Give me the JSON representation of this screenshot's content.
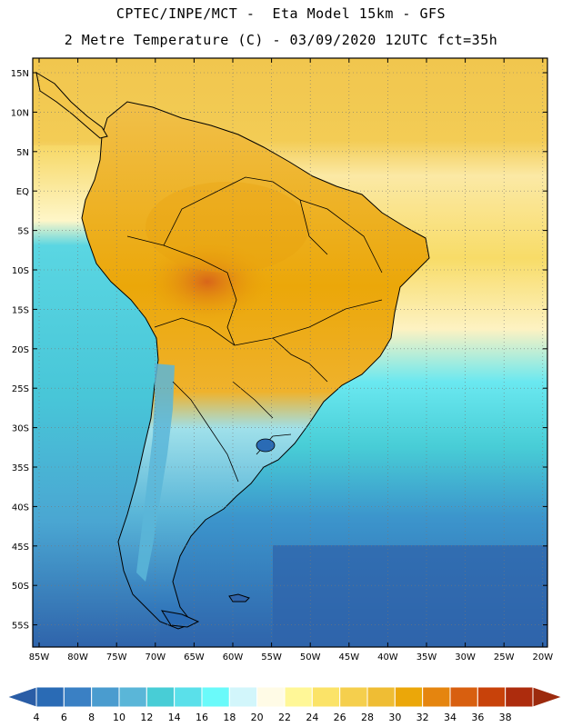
{
  "header": {
    "line1": "CPTEC/INPE/MCT -  Eta Model 15km - GFS",
    "line2": "2 Metre Temperature (C) - 03/09/2020 12UTC fct=35h"
  },
  "axes": {
    "lat_labels": [
      "15N",
      "10N",
      "5N",
      "EQ",
      "5S",
      "10S",
      "15S",
      "20S",
      "25S",
      "30S",
      "35S",
      "40S",
      "45S",
      "50S",
      "55S"
    ],
    "lon_labels": [
      "85W",
      "80W",
      "75W",
      "70W",
      "65W",
      "60W",
      "55W",
      "50W",
      "45W",
      "40W",
      "35W",
      "30W",
      "25W",
      "20W"
    ]
  },
  "colorbar": {
    "labels": [
      "4",
      "6",
      "8",
      "10",
      "12",
      "14",
      "16",
      "18",
      "20",
      "22",
      "24",
      "26",
      "28",
      "30",
      "32",
      "34",
      "36",
      "38"
    ],
    "colors": [
      "#2a6bb5",
      "#3a80c4",
      "#4a9ccf",
      "#5ab6d8",
      "#48cdd6",
      "#5ae0ea",
      "#6afafa",
      "#d2f6fb",
      "#fffbe6",
      "#fff797",
      "#fbe368",
      "#f5cf4d",
      "#efbd34",
      "#eba709",
      "#e5850f",
      "#d85f0f",
      "#c8420a",
      "#ad2c0d"
    ],
    "low_arrow_color": "#2a5da6",
    "high_arrow_color": "#9c2a0d"
  },
  "colors": {
    "ocean_cold": "#2f64ab",
    "ocean_mid": "#48c6d8",
    "ocean_warm": "#fbe9a5",
    "ocean_hot": "#f1c64e",
    "land_hot": "#eba709"
  }
}
